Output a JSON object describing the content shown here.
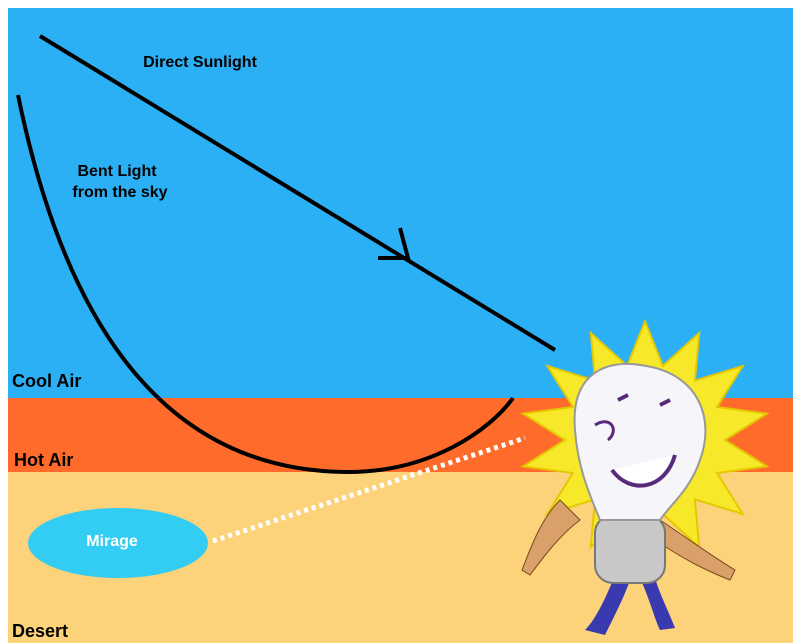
{
  "labels": {
    "direct_sunlight": "Direct Sunlight",
    "bent_light": [
      "Bent Light",
      "from the sky"
    ],
    "cool_air": "Cool Air",
    "hot_air": "Hot Air",
    "mirage": "Mirage",
    "desert": "Desert"
  }
}
